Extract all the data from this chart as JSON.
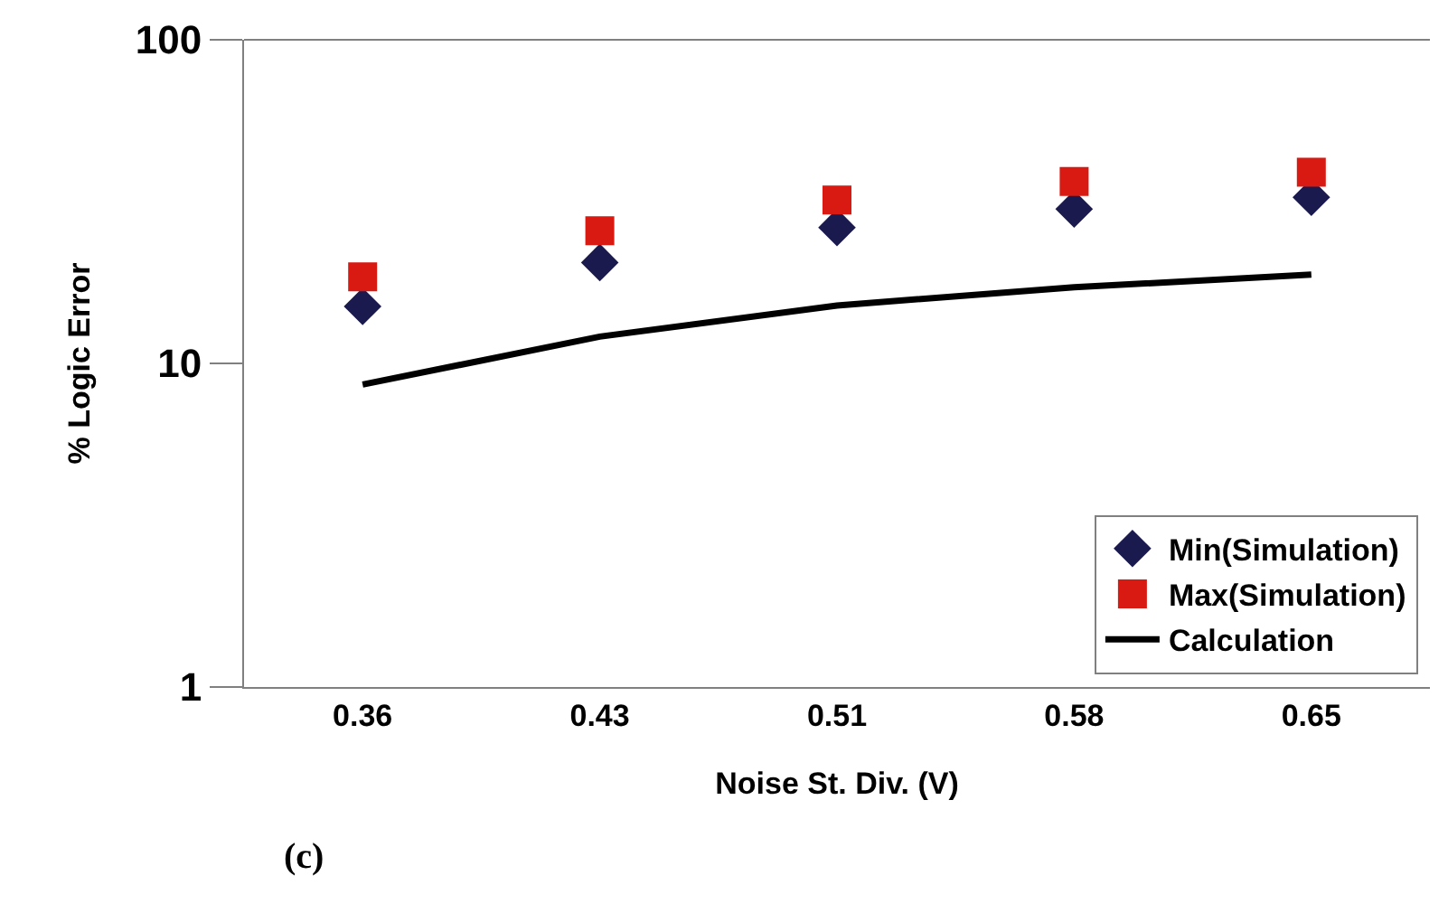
{
  "chart_data": {
    "type": "scatter",
    "xlabel": "Noise St. Div. (V)",
    "ylabel": "% Logic Error",
    "categories": [
      "0.36",
      "0.43",
      "0.51",
      "0.58",
      "0.65"
    ],
    "series": [
      {
        "name": "Min(Simulation)",
        "color": "#1a1a4e",
        "marker": "diamond",
        "values": [
          15.0,
          20.5,
          26.3,
          30,
          32.6
        ]
      },
      {
        "name": "Max(Simulation)",
        "color": "#d91a12",
        "marker": "square",
        "values": [
          18.5,
          25.7,
          32,
          36.5,
          39
        ]
      },
      {
        "name": "Calculation",
        "type": "line",
        "color": "#000000",
        "marker": "none",
        "line_style": "solid",
        "values": [
          8.6,
          12.1,
          15.1,
          17.2,
          18.8
        ]
      }
    ],
    "log": "y",
    "ylim": [
      1,
      100
    ],
    "yticks": [
      1,
      10,
      100
    ],
    "legend": "bottom right",
    "annotations": [
      "(c)"
    ]
  }
}
